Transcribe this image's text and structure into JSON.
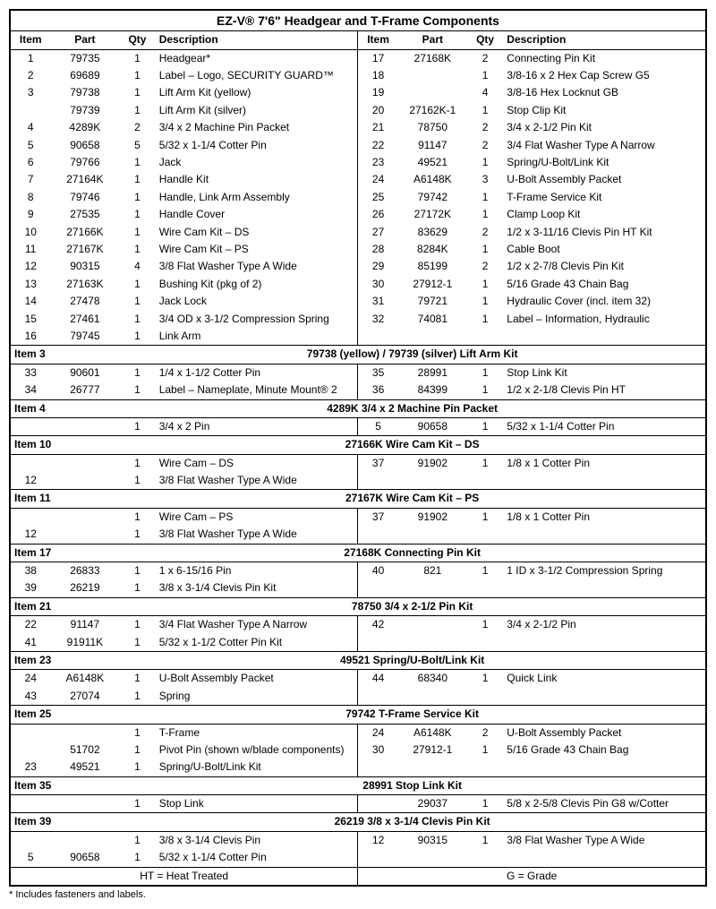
{
  "title": "EZ-V® 7'6\" Headgear and T-Frame Components",
  "headers": {
    "item": "Item",
    "part": "Part",
    "qty": "Qty",
    "desc": "Description"
  },
  "main": {
    "left": [
      {
        "i": "1",
        "p": "79735",
        "q": "1",
        "d": "Headgear*"
      },
      {
        "i": "2",
        "p": "69689",
        "q": "1",
        "d": "Label – Logo, SECURITY GUARD™"
      },
      {
        "i": "3",
        "p": "79738",
        "q": "1",
        "d": "Lift Arm Kit (yellow)"
      },
      {
        "i": "",
        "p": "79739",
        "q": "1",
        "d": "Lift Arm Kit (silver)"
      },
      {
        "i": "4",
        "p": "4289K",
        "q": "2",
        "d": "3/4 x 2 Machine Pin Packet"
      },
      {
        "i": "5",
        "p": "90658",
        "q": "5",
        "d": "5/32 x 1-1/4 Cotter Pin"
      },
      {
        "i": "6",
        "p": "79766",
        "q": "1",
        "d": "Jack"
      },
      {
        "i": "7",
        "p": "27164K",
        "q": "1",
        "d": "Handle Kit"
      },
      {
        "i": "8",
        "p": "79746",
        "q": "1",
        "d": "Handle, Link Arm Assembly"
      },
      {
        "i": "9",
        "p": "27535",
        "q": "1",
        "d": "Handle Cover"
      },
      {
        "i": "10",
        "p": "27166K",
        "q": "1",
        "d": "Wire Cam Kit – DS"
      },
      {
        "i": "11",
        "p": "27167K",
        "q": "1",
        "d": "Wire Cam Kit – PS"
      },
      {
        "i": "12",
        "p": "90315",
        "q": "4",
        "d": "3/8 Flat Washer Type A Wide"
      },
      {
        "i": "13",
        "p": "27163K",
        "q": "1",
        "d": "Bushing Kit (pkg of 2)"
      },
      {
        "i": "14",
        "p": "27478",
        "q": "1",
        "d": "Jack Lock"
      },
      {
        "i": "15",
        "p": "27461",
        "q": "1",
        "d": "3/4 OD x 3-1/2 Compression Spring"
      },
      {
        "i": "16",
        "p": "79745",
        "q": "1",
        "d": "Link Arm"
      }
    ],
    "right": [
      {
        "i": "17",
        "p": "27168K",
        "q": "2",
        "d": "Connecting Pin Kit"
      },
      {
        "i": "18",
        "p": "",
        "q": "1",
        "d": "3/8-16 x 2 Hex Cap Screw G5"
      },
      {
        "i": "19",
        "p": "",
        "q": "4",
        "d": "3/8-16 Hex Locknut GB"
      },
      {
        "i": "20",
        "p": "27162K-1",
        "q": "1",
        "d": "Stop Clip Kit"
      },
      {
        "i": "21",
        "p": "78750",
        "q": "2",
        "d": "3/4 x 2-1/2 Pin Kit"
      },
      {
        "i": "22",
        "p": "91147",
        "q": "2",
        "d": "3/4 Flat Washer Type A Narrow"
      },
      {
        "i": "23",
        "p": "49521",
        "q": "1",
        "d": "Spring/U-Bolt/Link Kit"
      },
      {
        "i": "24",
        "p": "A6148K",
        "q": "3",
        "d": "U-Bolt Assembly Packet"
      },
      {
        "i": "25",
        "p": "79742",
        "q": "1",
        "d": "T-Frame Service Kit"
      },
      {
        "i": "26",
        "p": "27172K",
        "q": "1",
        "d": "Clamp Loop Kit"
      },
      {
        "i": "27",
        "p": "83629",
        "q": "2",
        "d": "1/2 x 3-11/16 Clevis Pin HT Kit"
      },
      {
        "i": "28",
        "p": "8284K",
        "q": "1",
        "d": "Cable Boot"
      },
      {
        "i": "29",
        "p": "85199",
        "q": "2",
        "d": "1/2 x 2-7/8 Clevis Pin Kit"
      },
      {
        "i": "30",
        "p": "27912-1",
        "q": "1",
        "d": "5/16 Grade 43 Chain Bag"
      },
      {
        "i": "31",
        "p": "79721",
        "q": "1",
        "d": "Hydraulic Cover (incl. item 32)"
      },
      {
        "i": "32",
        "p": "74081",
        "q": "1",
        "d": "Label – Information, Hydraulic"
      },
      {
        "i": "",
        "p": "",
        "q": "",
        "d": ""
      }
    ]
  },
  "sections": [
    {
      "label": "Item 3",
      "title": "79738 (yellow) / 79739 (silver)  Lift Arm Kit",
      "left": [
        {
          "i": "33",
          "p": "90601",
          "q": "1",
          "d": "1/4 x 1-1/2 Cotter Pin"
        },
        {
          "i": "34",
          "p": "26777",
          "q": "1",
          "d": "Label – Nameplate, Minute Mount® 2"
        }
      ],
      "right": [
        {
          "i": "35",
          "p": "28991",
          "q": "1",
          "d": "Stop Link Kit"
        },
        {
          "i": "36",
          "p": "84399",
          "q": "1",
          "d": "1/2 x 2-1/8 Clevis Pin HT"
        }
      ]
    },
    {
      "label": "Item 4",
      "title": "4289K  3/4 x 2 Machine Pin Packet",
      "left": [
        {
          "i": "",
          "p": "",
          "q": "1",
          "d": "3/4 x 2 Pin"
        }
      ],
      "right": [
        {
          "i": "5",
          "p": "90658",
          "q": "1",
          "d": "5/32 x 1-1/4 Cotter Pin"
        }
      ]
    },
    {
      "label": "Item 10",
      "title": "27166K  Wire Cam Kit – DS",
      "left": [
        {
          "i": "",
          "p": "",
          "q": "1",
          "d": "Wire Cam – DS"
        },
        {
          "i": "12",
          "p": "",
          "q": "1",
          "d": "3/8 Flat Washer Type A Wide"
        }
      ],
      "right": [
        {
          "i": "37",
          "p": "91902",
          "q": "1",
          "d": "1/8 x 1 Cotter Pin"
        },
        {
          "i": "",
          "p": "",
          "q": "",
          "d": ""
        }
      ]
    },
    {
      "label": "Item 11",
      "title": "27167K  Wire Cam Kit – PS",
      "left": [
        {
          "i": "",
          "p": "",
          "q": "1",
          "d": "Wire Cam – PS"
        },
        {
          "i": "12",
          "p": "",
          "q": "1",
          "d": "3/8 Flat Washer Type A Wide"
        }
      ],
      "right": [
        {
          "i": "37",
          "p": "91902",
          "q": "1",
          "d": "1/8 x 1 Cotter Pin"
        },
        {
          "i": "",
          "p": "",
          "q": "",
          "d": ""
        }
      ]
    },
    {
      "label": "Item 17",
      "title": "27168K  Connecting Pin Kit",
      "left": [
        {
          "i": "38",
          "p": "26833",
          "q": "1",
          "d": "1 x 6-15/16 Pin"
        },
        {
          "i": "39",
          "p": "26219",
          "q": "1",
          "d": "3/8 x 3-1/4 Clevis Pin Kit"
        }
      ],
      "right": [
        {
          "i": "40",
          "p": "821",
          "q": "1",
          "d": "1 ID x 3-1/2 Compression Spring"
        },
        {
          "i": "",
          "p": "",
          "q": "",
          "d": ""
        }
      ]
    },
    {
      "label": "Item 21",
      "title": "78750  3/4 x 2-1/2 Pin Kit",
      "left": [
        {
          "i": "22",
          "p": "91147",
          "q": "1",
          "d": "3/4 Flat Washer Type A Narrow"
        },
        {
          "i": "41",
          "p": "91911K",
          "q": "1",
          "d": "5/32 x 1-1/2 Cotter Pin Kit"
        }
      ],
      "right": [
        {
          "i": "42",
          "p": "",
          "q": "1",
          "d": "3/4 x 2-1/2 Pin"
        },
        {
          "i": "",
          "p": "",
          "q": "",
          "d": ""
        }
      ]
    },
    {
      "label": "Item 23",
      "title": "49521  Spring/U-Bolt/Link Kit",
      "left": [
        {
          "i": "24",
          "p": "A6148K",
          "q": "1",
          "d": "U-Bolt Assembly Packet"
        },
        {
          "i": "43",
          "p": "27074",
          "q": "1",
          "d": "Spring"
        }
      ],
      "right": [
        {
          "i": "44",
          "p": "68340",
          "q": "1",
          "d": "Quick Link"
        },
        {
          "i": "",
          "p": "",
          "q": "",
          "d": ""
        }
      ]
    },
    {
      "label": "Item 25",
      "title": "79742  T-Frame Service Kit",
      "left": [
        {
          "i": "",
          "p": "",
          "q": "1",
          "d": "T-Frame"
        },
        {
          "i": "",
          "p": "51702",
          "q": "1",
          "d": "Pivot Pin (shown w/blade components)"
        },
        {
          "i": "23",
          "p": "49521",
          "q": "1",
          "d": "Spring/U-Bolt/Link Kit"
        }
      ],
      "right": [
        {
          "i": "24",
          "p": "A6148K",
          "q": "2",
          "d": "U-Bolt Assembly Packet"
        },
        {
          "i": "30",
          "p": "27912-1",
          "q": "1",
          "d": "5/16 Grade 43 Chain Bag"
        },
        {
          "i": "",
          "p": "",
          "q": "",
          "d": ""
        }
      ]
    },
    {
      "label": "Item 35",
      "title": "28991  Stop Link Kit",
      "left": [
        {
          "i": "",
          "p": "",
          "q": "1",
          "d": "Stop Link"
        }
      ],
      "right": [
        {
          "i": "",
          "p": "29037",
          "q": "1",
          "d": "5/8 x 2-5/8 Clevis Pin G8 w/Cotter"
        }
      ]
    },
    {
      "label": "Item 39",
      "title": "26219  3/8 x 3-1/4 Clevis Pin Kit",
      "left": [
        {
          "i": "",
          "p": "",
          "q": "1",
          "d": "3/8 x 3-1/4 Clevis Pin"
        },
        {
          "i": "5",
          "p": "90658",
          "q": "1",
          "d": "5/32 x 1-1/4 Cotter Pin"
        }
      ],
      "right": [
        {
          "i": "12",
          "p": "90315",
          "q": "1",
          "d": "3/8 Flat Washer Type A Wide"
        },
        {
          "i": "",
          "p": "",
          "q": "",
          "d": ""
        }
      ]
    }
  ],
  "footer_left": "HT = Heat Treated",
  "footer_right": "G = Grade",
  "footnote": "* Includes fasteners and labels."
}
